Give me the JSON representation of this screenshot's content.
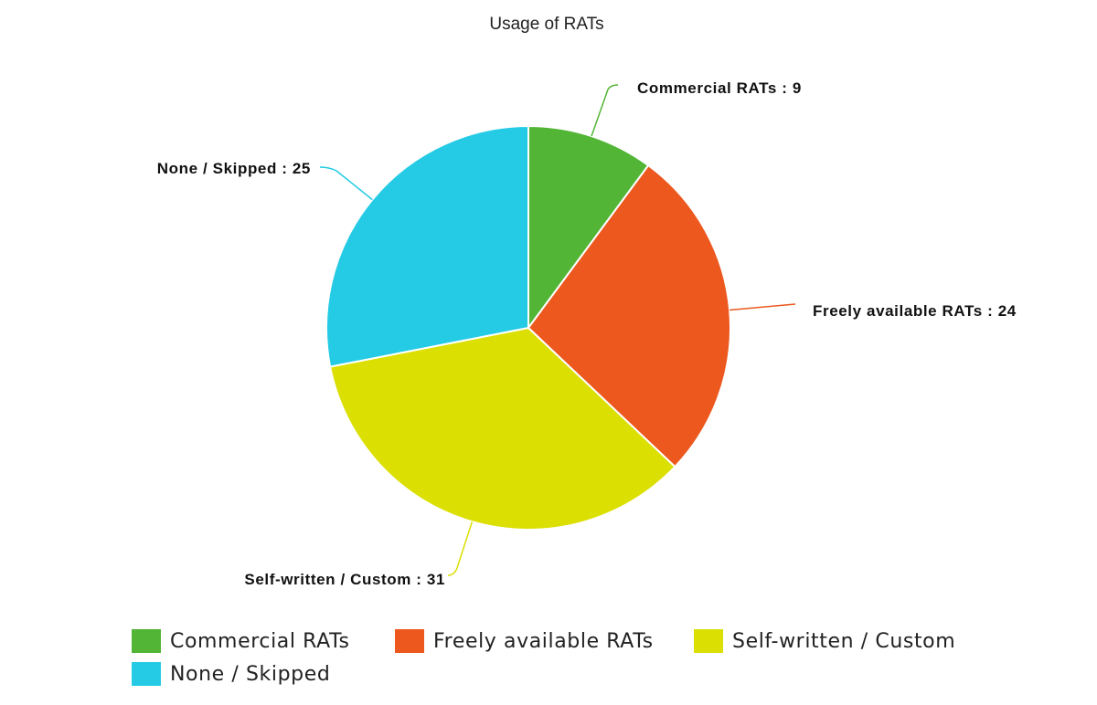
{
  "chart_data": {
    "type": "pie",
    "title": "Usage of RATs",
    "slices": [
      {
        "name": "Commercial RATs",
        "value": 9,
        "color": "#52b535"
      },
      {
        "name": "Freely available RATs",
        "value": 24,
        "color": "#ec581e"
      },
      {
        "name": "Self-written / Custom",
        "value": 31,
        "color": "#dbdf02"
      },
      {
        "name": "None / Skipped",
        "value": 25,
        "color": "#25cbe4"
      }
    ],
    "legend": {
      "placement": "bottom"
    }
  }
}
